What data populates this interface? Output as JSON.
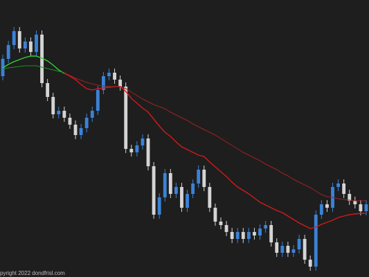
{
  "chart_data": {
    "type": "candlestick",
    "footer": "pyright 2022 dondfrisl.com",
    "ylim": [
      0,
      400
    ],
    "up_color": "#3b82d6",
    "down_color": "#d4d4d4",
    "open": [
      290,
      315,
      335,
      355,
      330,
      340,
      325,
      350,
      280,
      260,
      235,
      240,
      230,
      220,
      205,
      215,
      230,
      240,
      270,
      290,
      295,
      285,
      275,
      185,
      180,
      190,
      200,
      160,
      90,
      115,
      150,
      120,
      130,
      100,
      120,
      135,
      155,
      130,
      100,
      80,
      75,
      65,
      55,
      65,
      55,
      65,
      60,
      70,
      75,
      50,
      35,
      45,
      35,
      40,
      55,
      25,
      15,
      90,
      105,
      100,
      130,
      135,
      120,
      110,
      105,
      95
    ],
    "high": [
      321,
      341,
      361,
      361,
      346,
      346,
      356,
      356,
      286,
      266,
      246,
      246,
      236,
      226,
      221,
      236,
      246,
      276,
      296,
      301,
      301,
      291,
      281,
      191,
      196,
      206,
      206,
      166,
      121,
      156,
      156,
      136,
      136,
      126,
      141,
      161,
      161,
      136,
      106,
      86,
      81,
      71,
      71,
      71,
      71,
      71,
      76,
      81,
      81,
      56,
      51,
      51,
      46,
      61,
      61,
      31,
      96,
      111,
      111,
      136,
      141,
      141,
      126,
      116,
      111,
      111
    ],
    "low": [
      284,
      309,
      329,
      324,
      324,
      319,
      319,
      274,
      254,
      229,
      229,
      224,
      214,
      199,
      199,
      209,
      224,
      234,
      264,
      284,
      279,
      269,
      179,
      174,
      174,
      184,
      154,
      84,
      84,
      109,
      114,
      114,
      94,
      94,
      114,
      129,
      124,
      94,
      74,
      69,
      59,
      49,
      49,
      49,
      49,
      54,
      54,
      64,
      44,
      29,
      29,
      29,
      29,
      34,
      19,
      9,
      9,
      84,
      94,
      94,
      124,
      114,
      104,
      99,
      89,
      89
    ],
    "close": [
      315,
      335,
      355,
      330,
      340,
      325,
      350,
      280,
      260,
      235,
      240,
      230,
      220,
      205,
      215,
      230,
      240,
      270,
      290,
      295,
      285,
      275,
      185,
      180,
      190,
      200,
      160,
      90,
      115,
      150,
      120,
      130,
      100,
      120,
      135,
      155,
      130,
      100,
      80,
      75,
      65,
      55,
      65,
      55,
      65,
      60,
      70,
      75,
      50,
      35,
      45,
      35,
      40,
      55,
      25,
      15,
      90,
      105,
      100,
      130,
      135,
      120,
      110,
      105,
      95,
      105
    ],
    "lines": [
      {
        "color": "#35d13a",
        "values": [
          302,
          307,
          311,
          314,
          317,
          319,
          319,
          316,
          312,
          306,
          299,
          294,
          null,
          null,
          null,
          null,
          null,
          null,
          null,
          null,
          null,
          null,
          null,
          null,
          null,
          null,
          null,
          null,
          null,
          null,
          null,
          null,
          null,
          null,
          null,
          null,
          null,
          null,
          null,
          null,
          null,
          null,
          null,
          null,
          null,
          null,
          null,
          null,
          null,
          null,
          null,
          null,
          null,
          null,
          null,
          null,
          null,
          null,
          null,
          null,
          null,
          null,
          null,
          null,
          null,
          null
        ]
      },
      {
        "color": "#1f8f22",
        "values": [
          300,
          302,
          303,
          304,
          305,
          305,
          305,
          303,
          301,
          299,
          297,
          295,
          null,
          null,
          null,
          null,
          null,
          null,
          null,
          null,
          null,
          null,
          null,
          null,
          null,
          null,
          null,
          null,
          null,
          null,
          null,
          null,
          null,
          null,
          null,
          null,
          null,
          null,
          null,
          null,
          null,
          null,
          null,
          null,
          null,
          null,
          null,
          null,
          null,
          null,
          null,
          null,
          null,
          null,
          null,
          null,
          null,
          null,
          null,
          null,
          null,
          null,
          null,
          null,
          null,
          null
        ]
      },
      {
        "color": "#d41a1a",
        "values": [
          null,
          null,
          null,
          null,
          null,
          null,
          null,
          null,
          null,
          null,
          null,
          294,
          290,
          285,
          278,
          272,
          270,
          272,
          273,
          274,
          275,
          275,
          268,
          258,
          251,
          244,
          238,
          228,
          218,
          209,
          203,
          195,
          188,
          184,
          180,
          176,
          174,
          166,
          159,
          152,
          145,
          137,
          130,
          125,
          120,
          114,
          108,
          104,
          100,
          96,
          93,
          88,
          83,
          78,
          74,
          70,
          72,
          76,
          79,
          82,
          86,
          88,
          90,
          91,
          92,
          92
        ]
      },
      {
        "color": "#9e2222",
        "values": [
          null,
          null,
          null,
          null,
          null,
          null,
          null,
          null,
          null,
          null,
          null,
          295,
          291,
          287,
          284,
          281,
          279,
          277,
          276,
          275,
          275,
          275,
          272,
          267,
          262,
          257,
          253,
          249,
          246,
          243,
          238,
          234,
          230,
          226,
          221,
          217,
          213,
          209,
          205,
          200,
          195,
          190,
          185,
          180,
          176,
          172,
          168,
          163,
          159,
          155,
          150,
          146,
          141,
          137,
          133,
          129,
          124,
          119,
          116,
          115,
          113,
          112,
          111,
          110,
          110,
          110
        ]
      }
    ]
  }
}
